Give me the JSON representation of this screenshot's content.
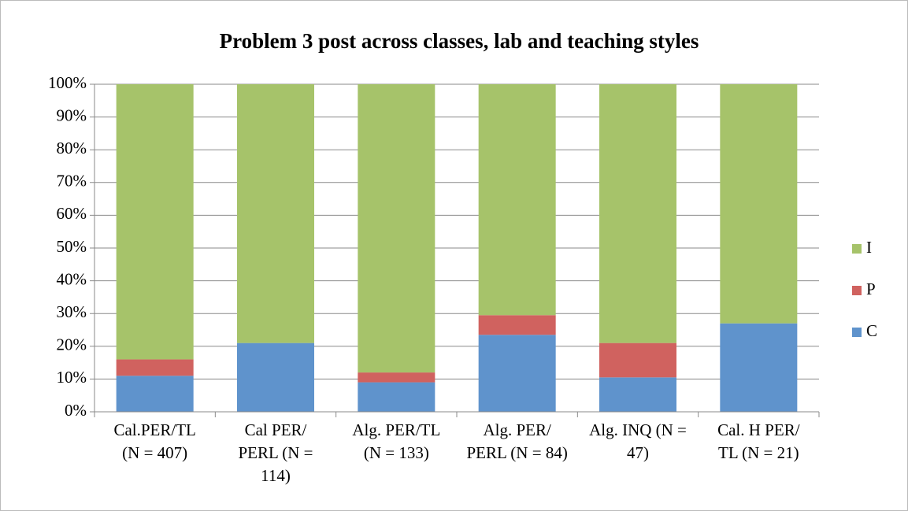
{
  "chart_data": {
    "type": "bar",
    "stacked": true,
    "title": "Problem 3 post across classes, lab and teaching styles",
    "categories": [
      "Cal.PER/TL (N = 407)",
      "Cal PER/ PERL (N = 114)",
      "Alg. PER/TL (N = 133)",
      "Alg. PER/ PERL (N = 84)",
      "Alg. INQ (N = 47)",
      "Cal. H PER/ TL (N = 21)"
    ],
    "series": [
      {
        "name": "C",
        "color": "#5f93cc",
        "values": [
          11,
          21,
          9,
          23.5,
          10.5,
          27
        ]
      },
      {
        "name": "P",
        "color": "#d0625f",
        "values": [
          5,
          0,
          3,
          6,
          10.5,
          0
        ]
      },
      {
        "name": "I",
        "color": "#a6c36a",
        "values": [
          84,
          79,
          88,
          70.5,
          79,
          73
        ]
      }
    ],
    "ylim": [
      0,
      100
    ],
    "yticks": [
      {
        "value": 0,
        "label": "0%"
      },
      {
        "value": 10,
        "label": "10%"
      },
      {
        "value": 20,
        "label": "20%"
      },
      {
        "value": 30,
        "label": "30%"
      },
      {
        "value": 40,
        "label": "40%"
      },
      {
        "value": 50,
        "label": "50%"
      },
      {
        "value": 60,
        "label": "60%"
      },
      {
        "value": 70,
        "label": "70%"
      },
      {
        "value": 80,
        "label": "80%"
      },
      {
        "value": 90,
        "label": "90%"
      },
      {
        "value": 100,
        "label": "100%"
      }
    ],
    "grid": true,
    "legend": "right"
  }
}
